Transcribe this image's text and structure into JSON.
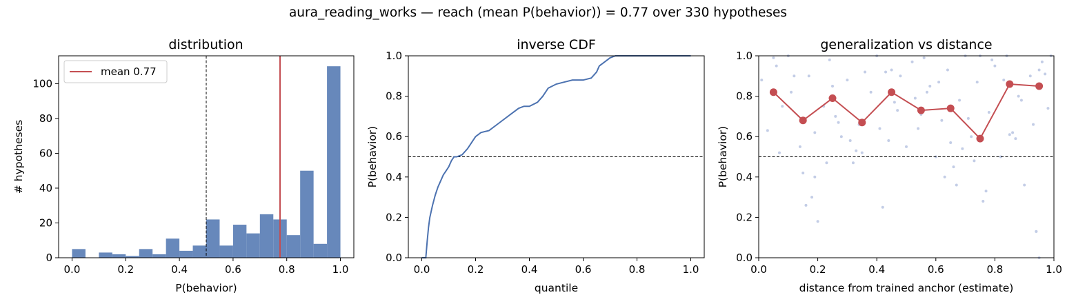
{
  "suptitle": "aura_reading_works  —  reach (mean P(behavior)) = 0.77  over 330 hypotheses",
  "colors": {
    "bar": "#6788bb",
    "accent": "#c44e52",
    "line": "#4c72b0",
    "scatter": "#c3cde6"
  },
  "chart_data": [
    {
      "type": "bar",
      "title": "distribution",
      "xlabel": "P(behavior)",
      "ylabel": "# hypotheses",
      "xlim": [
        -0.05,
        1.05
      ],
      "ylim": [
        0,
        116
      ],
      "xticks": [
        "0.0",
        "0.2",
        "0.4",
        "0.6",
        "0.8",
        "1.0"
      ],
      "yticks": [
        "0",
        "20",
        "40",
        "60",
        "80",
        "100"
      ],
      "bin_edges": [
        0.0,
        0.05,
        0.1,
        0.15,
        0.2,
        0.25,
        0.3,
        0.35,
        0.4,
        0.45,
        0.5,
        0.55,
        0.6,
        0.65,
        0.7,
        0.75,
        0.8,
        0.85,
        0.9,
        0.95,
        1.0
      ],
      "values": [
        5,
        0,
        3,
        2,
        1,
        5,
        2,
        11,
        4,
        7,
        22,
        7,
        19,
        14,
        25,
        22,
        13,
        50,
        8,
        110
      ],
      "threshold": 0.5,
      "mean": 0.775,
      "legend": [
        "mean 0.77"
      ],
      "legend_position": "top-left",
      "grid": false
    },
    {
      "type": "line",
      "title": "inverse CDF",
      "xlabel": "quantile",
      "ylabel": "P(behavior)",
      "xlim": [
        -0.05,
        1.05
      ],
      "ylim": [
        0,
        1
      ],
      "xticks": [
        "0.0",
        "0.2",
        "0.4",
        "0.6",
        "0.8",
        "1.0"
      ],
      "yticks": [
        "0.0",
        "0.2",
        "0.4",
        "0.6",
        "0.8",
        "1.0"
      ],
      "threshold": 0.5,
      "x": [
        0.0,
        0.015,
        0.02,
        0.025,
        0.03,
        0.04,
        0.05,
        0.06,
        0.07,
        0.08,
        0.09,
        0.1,
        0.11,
        0.12,
        0.13,
        0.15,
        0.17,
        0.18,
        0.2,
        0.22,
        0.25,
        0.28,
        0.3,
        0.33,
        0.36,
        0.38,
        0.4,
        0.43,
        0.45,
        0.47,
        0.5,
        0.53,
        0.56,
        0.6,
        0.63,
        0.65,
        0.66,
        0.68,
        0.7,
        0.72,
        0.75,
        1.0
      ],
      "y": [
        0.0,
        0.0,
        0.08,
        0.15,
        0.2,
        0.26,
        0.31,
        0.35,
        0.38,
        0.41,
        0.43,
        0.45,
        0.48,
        0.5,
        0.5,
        0.51,
        0.54,
        0.56,
        0.6,
        0.62,
        0.63,
        0.66,
        0.68,
        0.71,
        0.74,
        0.75,
        0.75,
        0.77,
        0.8,
        0.84,
        0.86,
        0.87,
        0.88,
        0.88,
        0.89,
        0.92,
        0.95,
        0.97,
        0.99,
        1.0,
        1.0,
        1.0
      ],
      "grid": false
    },
    {
      "type": "scatter",
      "title": "generalization vs distance",
      "xlabel": "distance from trained anchor (estimate)",
      "ylabel": "P(behavior)",
      "xlim": [
        0,
        1
      ],
      "ylim": [
        0,
        1
      ],
      "xticks": [
        "0.0",
        "0.2",
        "0.4",
        "0.6",
        "0.8",
        "1.0"
      ],
      "yticks": [
        "0.0",
        "0.2",
        "0.4",
        "0.6",
        "0.8",
        "1.0"
      ],
      "threshold": 0.5,
      "binned_means": {
        "x": [
          0.05,
          0.15,
          0.25,
          0.35,
          0.45,
          0.55,
          0.65,
          0.75,
          0.85,
          0.95
        ],
        "y": [
          0.82,
          0.68,
          0.79,
          0.67,
          0.82,
          0.73,
          0.74,
          0.59,
          0.86,
          0.85
        ]
      },
      "points": {
        "x": [
          0.01,
          0.03,
          0.06,
          0.08,
          0.1,
          0.12,
          0.14,
          0.17,
          0.19,
          0.2,
          0.22,
          0.24,
          0.26,
          0.28,
          0.3,
          0.32,
          0.34,
          0.36,
          0.38,
          0.4,
          0.42,
          0.44,
          0.46,
          0.48,
          0.5,
          0.52,
          0.54,
          0.56,
          0.58,
          0.6,
          0.62,
          0.64,
          0.66,
          0.68,
          0.7,
          0.72,
          0.74,
          0.76,
          0.78,
          0.8,
          0.82,
          0.84,
          0.86,
          0.88,
          0.9,
          0.92,
          0.94,
          0.96,
          0.98,
          0.05,
          0.15,
          0.25,
          0.35,
          0.45,
          0.55,
          0.65,
          0.75,
          0.85,
          0.95,
          0.07,
          0.18,
          0.27,
          0.33,
          0.43,
          0.57,
          0.63,
          0.73,
          0.83,
          0.93,
          0.16,
          0.19,
          0.41,
          0.47,
          0.67,
          0.69,
          0.77,
          0.87,
          0.94,
          0.95,
          0.99,
          0.11,
          0.23,
          0.31,
          0.53,
          0.61,
          0.71,
          0.79,
          0.89,
          0.97
        ],
        "y": [
          0.88,
          0.63,
          0.95,
          0.75,
          1.0,
          0.9,
          0.55,
          0.9,
          0.62,
          0.18,
          0.75,
          0.98,
          0.7,
          0.6,
          0.88,
          0.47,
          0.66,
          0.92,
          0.82,
          1.0,
          0.25,
          0.58,
          0.77,
          0.9,
          0.55,
          0.97,
          0.64,
          0.99,
          0.85,
          0.5,
          0.68,
          0.93,
          0.45,
          0.78,
          1.0,
          0.6,
          0.87,
          0.28,
          0.72,
          0.95,
          0.5,
          1.0,
          0.62,
          0.8,
          0.36,
          0.9,
          0.13,
          0.97,
          0.74,
          0.99,
          0.42,
          0.85,
          0.52,
          0.93,
          0.71,
          0.57,
          1.0,
          0.61,
          0.0,
          0.52,
          0.3,
          0.67,
          0.53,
          0.92,
          0.82,
          0.4,
          0.48,
          0.88,
          0.66,
          0.26,
          0.4,
          0.64,
          0.73,
          0.36,
          0.54,
          0.33,
          0.59,
          0.13,
          0.93,
          1.0,
          0.82,
          0.47,
          0.58,
          0.79,
          0.87,
          0.69,
          0.98,
          0.78,
          0.91
        ]
      },
      "grid": false
    }
  ]
}
